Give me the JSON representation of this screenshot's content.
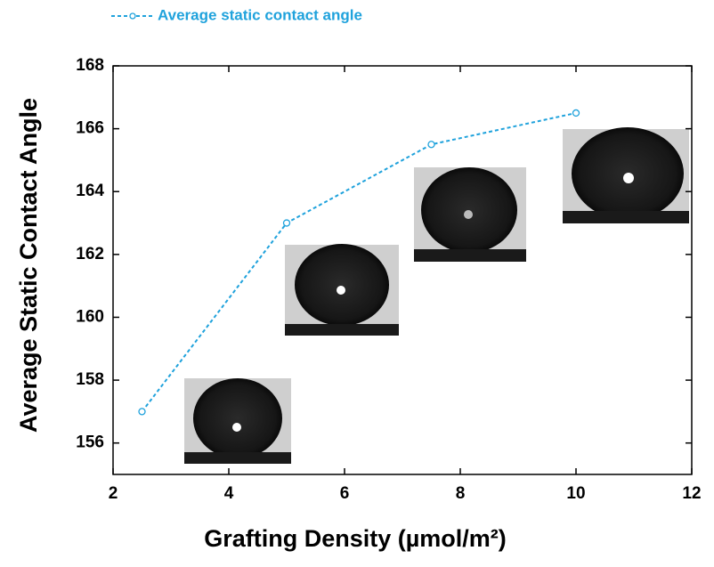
{
  "chart_data": {
    "type": "line",
    "x_label": "Grafting Density (µmol/m²)",
    "y_label": "Average Static Contact Angle",
    "series": [
      {
        "name": "Average static contact angle",
        "color": "#1fa2dc",
        "x": [
          2.5,
          5,
          7.5,
          10
        ],
        "values": [
          157,
          163,
          165.5,
          166.5
        ]
      }
    ],
    "xlim": [
      2,
      12
    ],
    "xticks": [
      2,
      4,
      6,
      8,
      10,
      12
    ],
    "ylim": [
      155,
      168
    ],
    "yticks": [
      156,
      158,
      160,
      162,
      164,
      166,
      168
    ],
    "legend": "top-left",
    "grid": false
  }
}
